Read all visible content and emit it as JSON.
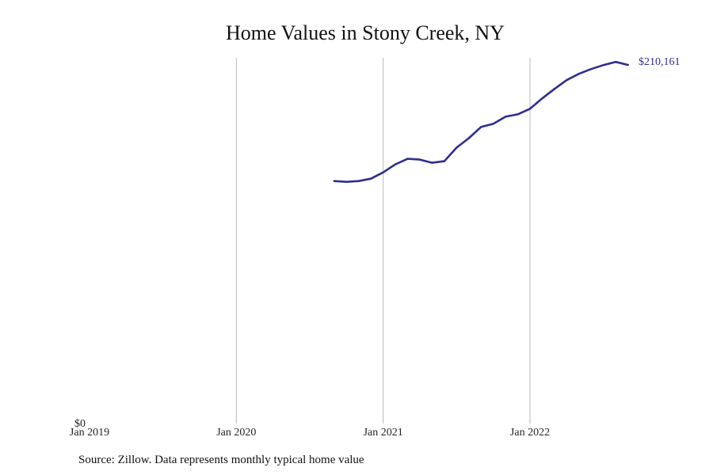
{
  "chart_data": {
    "type": "line",
    "title": "Home Values in Stony Creek, NY",
    "xlabel": "",
    "ylabel": "",
    "x_tick_labels": [
      "Jan 2019",
      "Jan 2020",
      "Jan 2021",
      "Jan 2022"
    ],
    "y_tick_labels": [
      "$0"
    ],
    "ylim": [
      0,
      210161
    ],
    "grid": "vertical at each January",
    "end_label": "$210,161",
    "line_color": "#2e2e8f",
    "series": [
      {
        "x": [
          "2020-09",
          "2020-10",
          "2020-11",
          "2020-12",
          "2021-01",
          "2021-02",
          "2021-03",
          "2021-04",
          "2021-05",
          "2021-06",
          "2021-07",
          "2021-08",
          "2021-09",
          "2021-10",
          "2021-11",
          "2021-12",
          "2022-01",
          "2022-02",
          "2022-03",
          "2022-04",
          "2022-05",
          "2022-06",
          "2022-07",
          "2022-08",
          "2022-09"
        ],
        "values": [
          141160,
          140700,
          141160,
          142550,
          146250,
          150900,
          154130,
          153670,
          151830,
          152750,
          160620,
          166170,
          172640,
          174480,
          178650,
          180020,
          183260,
          189280,
          194830,
          199920,
          203600,
          206370,
          208670,
          210520,
          208800
        ]
      }
    ]
  },
  "footer": {
    "source": "Source: Zillow. Data represents monthly typical home value"
  }
}
